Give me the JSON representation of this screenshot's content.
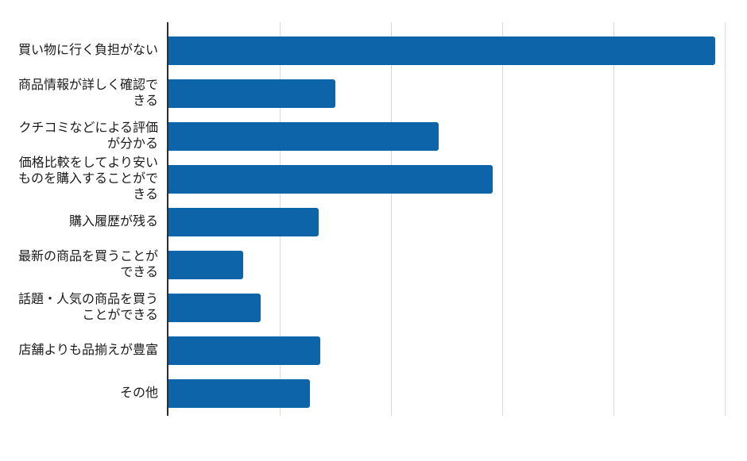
{
  "chart_data": {
    "type": "bar",
    "orientation": "horizontal",
    "title": "",
    "xlabel": "",
    "ylabel": "",
    "legend": "none",
    "categories": [
      "買い物に行く負担がない",
      "商品情報が詳しく確認で\nきる",
      "クチコミなどによる評価\nが分かる",
      "価格比較をしてより安い\nものを購入することがで\nきる",
      "購入履歴が残る",
      "最新の商品を買うことが\nできる",
      "話題・人気の商品を買う\nことができる",
      "店舗よりも品揃えが豊富",
      "その他"
    ],
    "values": [
      49.1,
      15.0,
      24.3,
      29.1,
      13.5,
      6.7,
      8.3,
      13.6,
      12.7
    ],
    "xlim": [
      0,
      51.9
    ],
    "gridlines": [
      10,
      20,
      30,
      40,
      50
    ],
    "tick_labels_visible": false,
    "grid": "vertical-only",
    "colors": {
      "bar": "#0d64a8",
      "axis": "#2f2f2f",
      "gridline": "#d9d9d9",
      "label_text": "#1a1a1a",
      "background": "#ffffff"
    }
  }
}
